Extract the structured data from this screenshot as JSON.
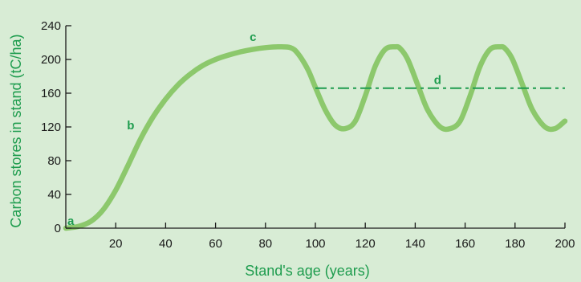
{
  "chart_data": {
    "type": "line",
    "xlabel": "Stand's age (years)",
    "ylabel": "Carbon stores in stand (tC/ha)",
    "xlim": [
      0,
      200
    ],
    "ylim": [
      0,
      240
    ],
    "x_ticks": [
      20,
      40,
      60,
      80,
      100,
      120,
      140,
      160,
      180,
      200
    ],
    "y_ticks": [
      0,
      40,
      80,
      120,
      160,
      200,
      240
    ],
    "grid": false,
    "colors": {
      "curve": "#8cc86c",
      "average_line": "#1e9c4e",
      "text": "#1e9c4e",
      "axes": "#1a1a1a",
      "background": "#d8ecd5"
    },
    "series": [
      {
        "x": [
          0,
          5,
          10,
          15,
          20,
          25,
          30,
          35,
          40,
          45,
          50,
          55,
          60,
          65,
          70,
          75,
          80,
          85,
          90,
          93,
          97,
          100,
          104,
          108,
          112,
          116,
          120,
          124,
          128,
          132,
          134,
          137,
          141,
          145,
          150,
          154,
          158,
          162,
          166,
          170,
          174,
          176,
          179,
          183,
          187,
          192,
          196,
          200
        ],
        "y": [
          0,
          2,
          8,
          22,
          45,
          75,
          106,
          132,
          153,
          170,
          183,
          193,
          200,
          205,
          209,
          212,
          214,
          215,
          214,
          207,
          188,
          167,
          140,
          122,
          118,
          127,
          157,
          192,
          212,
          215,
          213,
          200,
          170,
          140,
          120,
          118,
          127,
          157,
          192,
          212,
          215,
          213,
          200,
          170,
          140,
          120,
          118,
          127
        ]
      },
      {
        "x": [
          100,
          200
        ],
        "y": [
          166,
          166
        ],
        "style": "dash-dot"
      }
    ],
    "annotations": [
      {
        "text": "a",
        "x": 2,
        "y": 4
      },
      {
        "text": "b",
        "x": 26,
        "y": 117
      },
      {
        "text": "c",
        "x": 75,
        "y": 222
      },
      {
        "text": "d",
        "x": 149,
        "y": 171
      }
    ]
  }
}
